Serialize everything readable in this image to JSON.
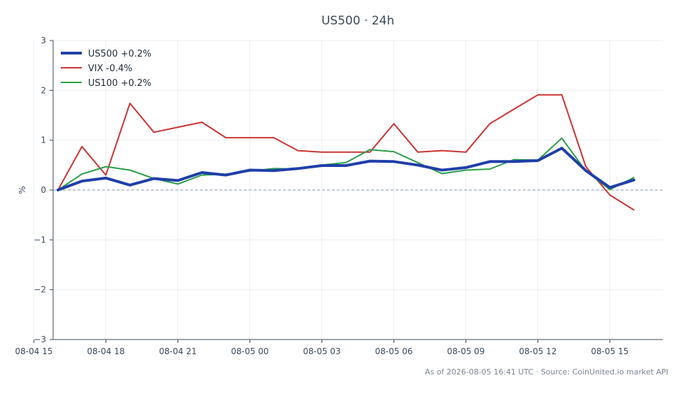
{
  "header": {
    "title": "US500 · 24h"
  },
  "footer": {
    "note": "As of 2026-08-05 16:41 UTC · Source: CoinUnited.io market API"
  },
  "chart_data": {
    "type": "line",
    "title": "US500 · 24h",
    "xlabel": "",
    "ylabel": "%",
    "x_unit": "hours from 08-04 15:00",
    "x": [
      1,
      2,
      3,
      4,
      5,
      6,
      7,
      8,
      9,
      10,
      11,
      12,
      13,
      14,
      15,
      16,
      17,
      18,
      19,
      20,
      21,
      22,
      23,
      24,
      25
    ],
    "xlim": [
      0.8,
      26.2
    ],
    "ylim": [
      -3,
      3
    ],
    "y_ticks": [
      -3,
      -2,
      -1,
      0,
      1,
      2,
      3
    ],
    "y_tick_labels": [
      "−3",
      "−2",
      "−1",
      "0",
      "1",
      "2",
      "3"
    ],
    "x_ticks": [
      0,
      3,
      6,
      9,
      12,
      15,
      18,
      21,
      24
    ],
    "x_tick_labels": [
      "08-04 15",
      "08-04 18",
      "08-04 21",
      "08-05 00",
      "08-05 03",
      "08-05 06",
      "08-05 09",
      "08-05 12",
      "08-05 15"
    ],
    "grid": true,
    "zero_line": true,
    "legend_position": "top-left",
    "series": [
      {
        "name": "US500 +0.2%",
        "color": "#1f3fa8",
        "width": 4,
        "values": [
          0.0,
          0.18,
          0.24,
          0.1,
          0.23,
          0.19,
          0.35,
          0.3,
          0.4,
          0.39,
          0.43,
          0.49,
          0.49,
          0.58,
          0.57,
          0.5,
          0.4,
          0.45,
          0.57,
          0.57,
          0.59,
          0.84,
          0.39,
          0.05,
          0.2
        ]
      },
      {
        "name": "VIX -0.4%",
        "color": "#cc3333",
        "width": 2,
        "values": [
          0.0,
          0.87,
          0.3,
          1.74,
          1.16,
          1.26,
          1.36,
          1.05,
          1.05,
          1.05,
          0.79,
          0.76,
          0.76,
          0.76,
          1.33,
          0.76,
          0.79,
          0.76,
          1.33,
          1.62,
          1.91,
          1.91,
          0.47,
          -0.1,
          -0.4
        ]
      },
      {
        "name": "US100 +0.2%",
        "color": "#2a9d4a",
        "width": 2,
        "values": [
          0.0,
          0.32,
          0.47,
          0.4,
          0.23,
          0.12,
          0.3,
          0.32,
          0.38,
          0.43,
          0.42,
          0.5,
          0.55,
          0.81,
          0.77,
          0.55,
          0.33,
          0.4,
          0.42,
          0.61,
          0.6,
          1.04,
          0.38,
          0.01,
          0.25
        ]
      }
    ]
  }
}
